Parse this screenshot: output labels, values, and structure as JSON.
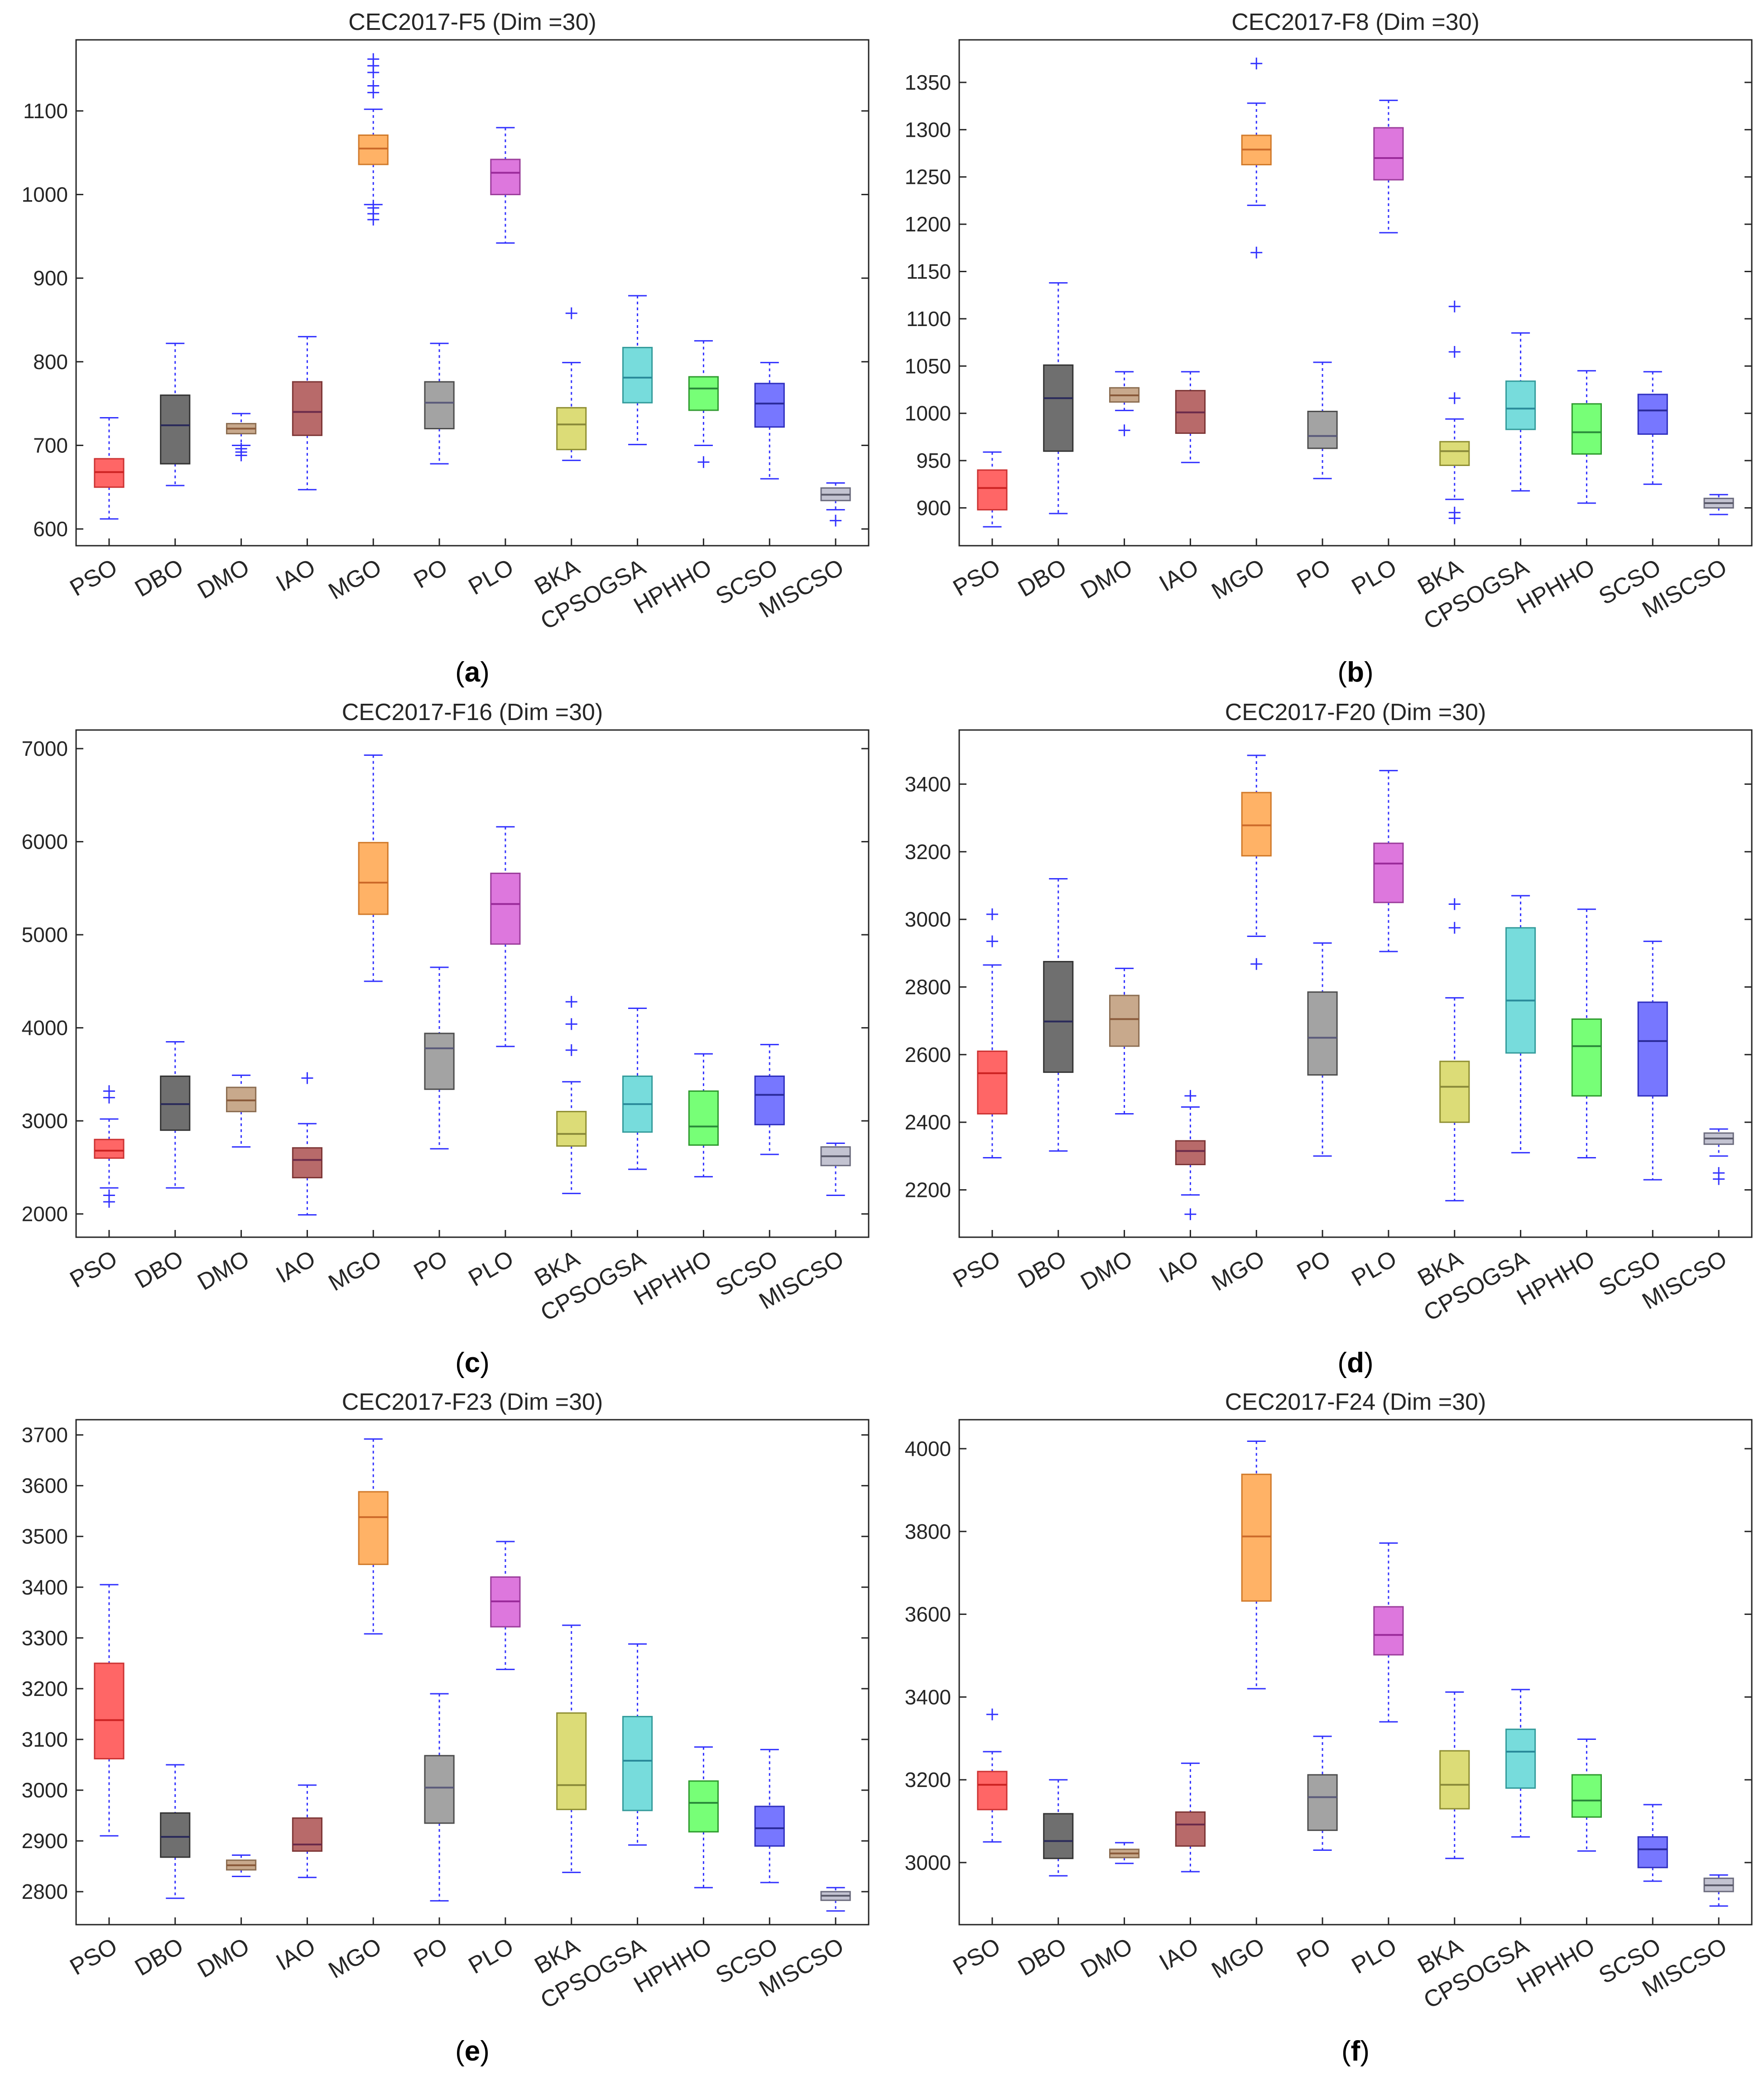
{
  "colors": {
    "axis": "#262626",
    "whisker": "#3333ff",
    "outlier": "#3333ff",
    "boxes": [
      "#ff6666",
      "#6f6f6f",
      "#c8a98c",
      "#b86a6a",
      "#ffb266",
      "#a3a3a3",
      "#dd77dd",
      "#dcdc77",
      "#77dcdc",
      "#77ff77",
      "#7777ff",
      "#c3c3d1"
    ],
    "box_edges": [
      "#cc3333",
      "#333333",
      "#8c6e52",
      "#7d3636",
      "#d17a2a",
      "#4d4d4d",
      "#9b3d9b",
      "#8f8f33",
      "#349b9b",
      "#2f9b2f",
      "#2f2fbf",
      "#6b6b7d"
    ],
    "medians": [
      "#cc2222",
      "#2a2a5a",
      "#8a5a3a",
      "#6a2a4a",
      "#cc6a2a",
      "#5a5a7a",
      "#9a2a9a",
      "#8a8a3a",
      "#2a8a9a",
      "#2a8a3a",
      "#2a2a9a",
      "#5a5a6a"
    ]
  },
  "chart_data": [
    {
      "type": "box",
      "title": "CEC2017-F5 (Dim =30)",
      "caption": "a",
      "categories": [
        "PSO",
        "DBO",
        "DMO",
        "IAO",
        "MGO",
        "PO",
        "PLO",
        "BKA",
        "CPSOGSA",
        "HPHHO",
        "SCSO",
        "MISCSO"
      ],
      "ylim": [
        580,
        1185
      ],
      "yticks": [
        600,
        700,
        800,
        900,
        1000,
        1100
      ],
      "boxes": [
        {
          "min": 612,
          "q1": 650,
          "median": 668,
          "q3": 684,
          "max": 733,
          "outliers": []
        },
        {
          "min": 652,
          "q1": 678,
          "median": 724,
          "q3": 760,
          "max": 822,
          "outliers": []
        },
        {
          "min": 700,
          "q1": 714,
          "median": 720,
          "q3": 726,
          "max": 738,
          "outliers": [
            688,
            692,
            696
          ]
        },
        {
          "min": 647,
          "q1": 712,
          "median": 740,
          "q3": 776,
          "max": 830,
          "outliers": []
        },
        {
          "min": 988,
          "q1": 1036,
          "median": 1055,
          "q3": 1071,
          "max": 1102,
          "outliers": [
            970,
            977,
            984,
            1122,
            1130,
            1146,
            1154,
            1162
          ]
        },
        {
          "min": 678,
          "q1": 720,
          "median": 751,
          "q3": 776,
          "max": 822,
          "outliers": []
        },
        {
          "min": 942,
          "q1": 1000,
          "median": 1026,
          "q3": 1042,
          "max": 1080,
          "outliers": []
        },
        {
          "min": 682,
          "q1": 695,
          "median": 725,
          "q3": 745,
          "max": 799,
          "outliers": [
            858
          ]
        },
        {
          "min": 701,
          "q1": 751,
          "median": 781,
          "q3": 817,
          "max": 879,
          "outliers": []
        },
        {
          "min": 700,
          "q1": 742,
          "median": 768,
          "q3": 782,
          "max": 825,
          "outliers": [
            680
          ]
        },
        {
          "min": 660,
          "q1": 722,
          "median": 750,
          "q3": 774,
          "max": 799,
          "outliers": []
        },
        {
          "min": 623,
          "q1": 634,
          "median": 641,
          "q3": 649,
          "max": 655,
          "outliers": [
            610
          ]
        }
      ]
    },
    {
      "type": "box",
      "title": "CEC2017-F8 (Dim =30)",
      "caption": "b",
      "categories": [
        "PSO",
        "DBO",
        "DMO",
        "IAO",
        "MGO",
        "PO",
        "PLO",
        "BKA",
        "CPSOGSA",
        "HPHHO",
        "SCSO",
        "MISCSO"
      ],
      "ylim": [
        860,
        1395
      ],
      "yticks": [
        900,
        950,
        1000,
        1050,
        1100,
        1150,
        1200,
        1250,
        1300,
        1350
      ],
      "boxes": [
        {
          "min": 880,
          "q1": 898,
          "median": 921,
          "q3": 940,
          "max": 959,
          "outliers": []
        },
        {
          "min": 894,
          "q1": 960,
          "median": 1016,
          "q3": 1051,
          "max": 1138,
          "outliers": []
        },
        {
          "min": 1003,
          "q1": 1012,
          "median": 1019,
          "q3": 1027,
          "max": 1044,
          "outliers": [
            982
          ]
        },
        {
          "min": 948,
          "q1": 979,
          "median": 1001,
          "q3": 1024,
          "max": 1044,
          "outliers": []
        },
        {
          "min": 1220,
          "q1": 1263,
          "median": 1279,
          "q3": 1294,
          "max": 1328,
          "outliers": [
            1170,
            1370
          ]
        },
        {
          "min": 931,
          "q1": 963,
          "median": 976,
          "q3": 1002,
          "max": 1054,
          "outliers": []
        },
        {
          "min": 1191,
          "q1": 1247,
          "median": 1270,
          "q3": 1302,
          "max": 1331,
          "outliers": []
        },
        {
          "min": 909,
          "q1": 945,
          "median": 960,
          "q3": 970,
          "max": 994,
          "outliers": [
            889,
            895,
            1016,
            1065,
            1113
          ]
        },
        {
          "min": 918,
          "q1": 983,
          "median": 1005,
          "q3": 1034,
          "max": 1085,
          "outliers": []
        },
        {
          "min": 905,
          "q1": 957,
          "median": 980,
          "q3": 1010,
          "max": 1045,
          "outliers": []
        },
        {
          "min": 925,
          "q1": 978,
          "median": 1003,
          "q3": 1020,
          "max": 1044,
          "outliers": []
        },
        {
          "min": 893,
          "q1": 900,
          "median": 905,
          "q3": 910,
          "max": 914,
          "outliers": []
        }
      ]
    },
    {
      "type": "box",
      "title": "CEC2017-F16 (Dim =30)",
      "caption": "c",
      "categories": [
        "PSO",
        "DBO",
        "DMO",
        "IAO",
        "MGO",
        "PO",
        "PLO",
        "BKA",
        "CPSOGSA",
        "HPHHO",
        "SCSO",
        "MISCSO"
      ],
      "ylim": [
        1750,
        7200
      ],
      "yticks": [
        2000,
        3000,
        4000,
        5000,
        6000,
        7000
      ],
      "boxes": [
        {
          "min": 2280,
          "q1": 2600,
          "median": 2680,
          "q3": 2800,
          "max": 3020,
          "outliers": [
            2130,
            2200,
            3250,
            3320
          ]
        },
        {
          "min": 2280,
          "q1": 2900,
          "median": 3180,
          "q3": 3480,
          "max": 3850,
          "outliers": []
        },
        {
          "min": 2720,
          "q1": 3100,
          "median": 3220,
          "q3": 3360,
          "max": 3490,
          "outliers": []
        },
        {
          "min": 1990,
          "q1": 2390,
          "median": 2580,
          "q3": 2710,
          "max": 2970,
          "outliers": [
            3460
          ]
        },
        {
          "min": 4500,
          "q1": 5220,
          "median": 5560,
          "q3": 5990,
          "max": 6930,
          "outliers": []
        },
        {
          "min": 2700,
          "q1": 3340,
          "median": 3780,
          "q3": 3940,
          "max": 4650,
          "outliers": []
        },
        {
          "min": 3800,
          "q1": 4900,
          "median": 5330,
          "q3": 5660,
          "max": 6160,
          "outliers": []
        },
        {
          "min": 2220,
          "q1": 2730,
          "median": 2860,
          "q3": 3100,
          "max": 3420,
          "outliers": [
            3760,
            4040,
            4280
          ]
        },
        {
          "min": 2480,
          "q1": 2880,
          "median": 3180,
          "q3": 3480,
          "max": 4210,
          "outliers": []
        },
        {
          "min": 2400,
          "q1": 2740,
          "median": 2940,
          "q3": 3320,
          "max": 3720,
          "outliers": []
        },
        {
          "min": 2640,
          "q1": 2960,
          "median": 3280,
          "q3": 3480,
          "max": 3820,
          "outliers": []
        },
        {
          "min": 2200,
          "q1": 2520,
          "median": 2620,
          "q3": 2720,
          "max": 2760,
          "outliers": []
        }
      ]
    },
    {
      "type": "box",
      "title": "CEC2017-F20 (Dim =30)",
      "caption": "d",
      "categories": [
        "PSO",
        "DBO",
        "DMO",
        "IAO",
        "MGO",
        "PO",
        "PLO",
        "BKA",
        "CPSOGSA",
        "HPHHO",
        "SCSO",
        "MISCSO"
      ],
      "ylim": [
        2060,
        3560
      ],
      "yticks": [
        2200,
        2400,
        2600,
        2800,
        3000,
        3200,
        3400
      ],
      "boxes": [
        {
          "min": 2295,
          "q1": 2425,
          "median": 2545,
          "q3": 2610,
          "max": 2865,
          "outliers": [
            2935,
            3015
          ]
        },
        {
          "min": 2315,
          "q1": 2548,
          "median": 2698,
          "q3": 2875,
          "max": 3120,
          "outliers": []
        },
        {
          "min": 2425,
          "q1": 2625,
          "median": 2705,
          "q3": 2775,
          "max": 2855,
          "outliers": []
        },
        {
          "min": 2185,
          "q1": 2275,
          "median": 2315,
          "q3": 2345,
          "max": 2445,
          "outliers": [
            2128,
            2478
          ]
        },
        {
          "min": 2950,
          "q1": 3188,
          "median": 3278,
          "q3": 3375,
          "max": 3485,
          "outliers": [
            2868
          ]
        },
        {
          "min": 2300,
          "q1": 2540,
          "median": 2650,
          "q3": 2785,
          "max": 2930,
          "outliers": []
        },
        {
          "min": 2905,
          "q1": 3050,
          "median": 3165,
          "q3": 3225,
          "max": 3440,
          "outliers": []
        },
        {
          "min": 2168,
          "q1": 2400,
          "median": 2505,
          "q3": 2580,
          "max": 2768,
          "outliers": [
            2975,
            3045
          ]
        },
        {
          "min": 2310,
          "q1": 2605,
          "median": 2760,
          "q3": 2975,
          "max": 3070,
          "outliers": []
        },
        {
          "min": 2295,
          "q1": 2478,
          "median": 2625,
          "q3": 2705,
          "max": 3030,
          "outliers": []
        },
        {
          "min": 2230,
          "q1": 2478,
          "median": 2640,
          "q3": 2755,
          "max": 2935,
          "outliers": []
        },
        {
          "min": 2300,
          "q1": 2335,
          "median": 2352,
          "q3": 2368,
          "max": 2380,
          "outliers": [
            2232,
            2250
          ]
        }
      ]
    },
    {
      "type": "box",
      "title": "CEC2017-F23 (Dim =30)",
      "caption": "e",
      "categories": [
        "PSO",
        "DBO",
        "DMO",
        "IAO",
        "MGO",
        "PO",
        "PLO",
        "BKA",
        "CPSOGSA",
        "HPHHO",
        "SCSO",
        "MISCSO"
      ],
      "ylim": [
        2735,
        3730
      ],
      "yticks": [
        2800,
        2900,
        3000,
        3100,
        3200,
        3300,
        3400,
        3500,
        3600,
        3700
      ],
      "boxes": [
        {
          "min": 2910,
          "q1": 3062,
          "median": 3138,
          "q3": 3250,
          "max": 3405,
          "outliers": []
        },
        {
          "min": 2787,
          "q1": 2868,
          "median": 2908,
          "q3": 2955,
          "max": 3050,
          "outliers": []
        },
        {
          "min": 2830,
          "q1": 2843,
          "median": 2852,
          "q3": 2862,
          "max": 2872,
          "outliers": []
        },
        {
          "min": 2828,
          "q1": 2880,
          "median": 2893,
          "q3": 2945,
          "max": 3010,
          "outliers": []
        },
        {
          "min": 3308,
          "q1": 3445,
          "median": 3538,
          "q3": 3588,
          "max": 3692,
          "outliers": []
        },
        {
          "min": 2782,
          "q1": 2935,
          "median": 3005,
          "q3": 3068,
          "max": 3190,
          "outliers": []
        },
        {
          "min": 3238,
          "q1": 3322,
          "median": 3372,
          "q3": 3420,
          "max": 3490,
          "outliers": []
        },
        {
          "min": 2838,
          "q1": 2962,
          "median": 3010,
          "q3": 3152,
          "max": 3325,
          "outliers": []
        },
        {
          "min": 2892,
          "q1": 2960,
          "median": 3058,
          "q3": 3145,
          "max": 3288,
          "outliers": []
        },
        {
          "min": 2808,
          "q1": 2918,
          "median": 2975,
          "q3": 3018,
          "max": 3085,
          "outliers": []
        },
        {
          "min": 2818,
          "q1": 2890,
          "median": 2925,
          "q3": 2968,
          "max": 3080,
          "outliers": []
        },
        {
          "min": 2762,
          "q1": 2783,
          "median": 2792,
          "q3": 2800,
          "max": 2808,
          "outliers": []
        }
      ]
    },
    {
      "type": "box",
      "title": "CEC2017-F24 (Dim =30)",
      "caption": "f",
      "categories": [
        "PSO",
        "DBO",
        "DMO",
        "IAO",
        "MGO",
        "PO",
        "PLO",
        "BKA",
        "CPSOGSA",
        "HPHHO",
        "SCSO",
        "MISCSO"
      ],
      "ylim": [
        2850,
        4070
      ],
      "yticks": [
        3000,
        3200,
        3400,
        3600,
        3800,
        4000
      ],
      "boxes": [
        {
          "min": 3050,
          "q1": 3128,
          "median": 3188,
          "q3": 3220,
          "max": 3268,
          "outliers": [
            3358
          ]
        },
        {
          "min": 2968,
          "q1": 3010,
          "median": 3052,
          "q3": 3118,
          "max": 3200,
          "outliers": []
        },
        {
          "min": 2998,
          "q1": 3012,
          "median": 3022,
          "q3": 3032,
          "max": 3048,
          "outliers": []
        },
        {
          "min": 2978,
          "q1": 3040,
          "median": 3092,
          "q3": 3122,
          "max": 3240,
          "outliers": []
        },
        {
          "min": 3420,
          "q1": 3632,
          "median": 3788,
          "q3": 3938,
          "max": 4018,
          "outliers": []
        },
        {
          "min": 3030,
          "q1": 3078,
          "median": 3158,
          "q3": 3212,
          "max": 3305,
          "outliers": []
        },
        {
          "min": 3340,
          "q1": 3502,
          "median": 3550,
          "q3": 3618,
          "max": 3772,
          "outliers": []
        },
        {
          "min": 3010,
          "q1": 3130,
          "median": 3188,
          "q3": 3270,
          "max": 3412,
          "outliers": []
        },
        {
          "min": 3062,
          "q1": 3180,
          "median": 3268,
          "q3": 3322,
          "max": 3418,
          "outliers": []
        },
        {
          "min": 3028,
          "q1": 3110,
          "median": 3150,
          "q3": 3212,
          "max": 3298,
          "outliers": []
        },
        {
          "min": 2955,
          "q1": 2988,
          "median": 3032,
          "q3": 3062,
          "max": 3140,
          "outliers": []
        },
        {
          "min": 2895,
          "q1": 2930,
          "median": 2945,
          "q3": 2962,
          "max": 2970,
          "outliers": []
        }
      ]
    }
  ]
}
